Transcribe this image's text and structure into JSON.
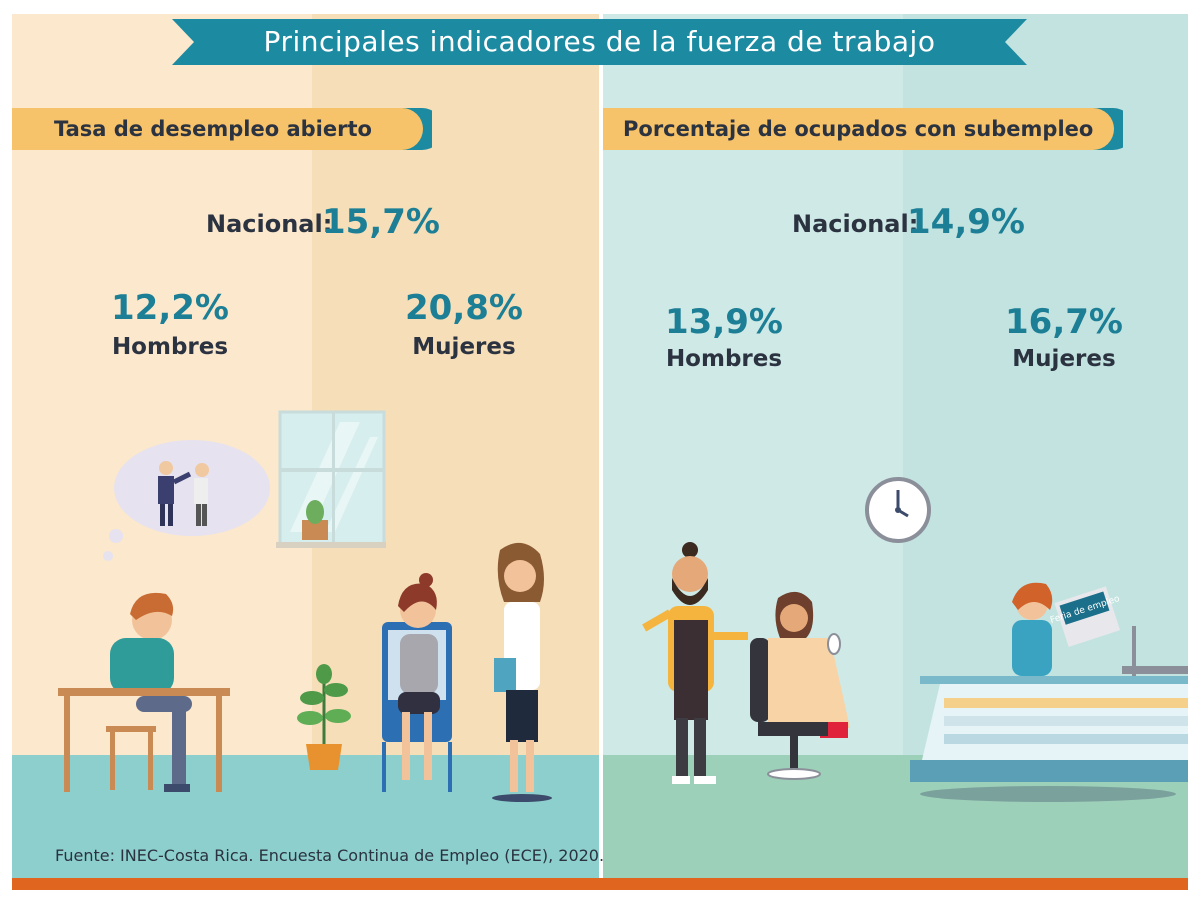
{
  "title": "Principales indicadores de la fuerza de trabajo",
  "left": {
    "section_title": "Tasa de desempleo abierto",
    "national_label": "Nacional:",
    "national_value": "15,7%",
    "men_value": "12,2%",
    "men_label": "Hombres",
    "women_value": "20,8%",
    "women_label": "Mujeres"
  },
  "right": {
    "section_title": "Porcentaje de ocupados con subempleo",
    "national_label": "Nacional:",
    "national_value": "14,9%",
    "men_value": "13,9%",
    "men_label": "Hombres",
    "women_value": "16,7%",
    "women_label": "Mujeres"
  },
  "newspaper_text": "Feria de empleo",
  "source": "Fuente: INEC-Costa Rica. Encuesta Continua de Empleo (ECE), 2020.",
  "colors": {
    "teal": "#1c7f95",
    "banner": "#1c8aa0",
    "pill": "#f6c26a",
    "left_bg": "#fbe8cd",
    "right_bg": "#cfe9e7",
    "bottom_bar": "#e0661f"
  }
}
